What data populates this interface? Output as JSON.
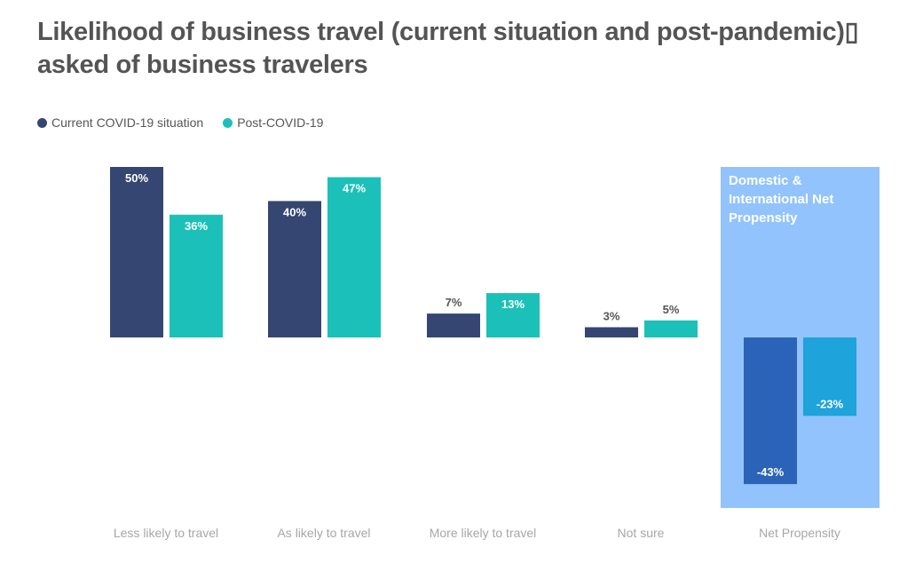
{
  "title": "Likelihood of business travel (current situation and post-pandemic)▯ asked of business travelers",
  "colors": {
    "current": "#364672",
    "post": "#1bc1b8",
    "net_current": "#2b63b8",
    "net_post": "#1ea3da",
    "net_panel": "#92c3fc"
  },
  "chart_data": {
    "type": "bar",
    "title": "Likelihood of business travel (current situation and post-pandemic)▯ asked of business travelers",
    "categories": [
      "Less likely to travel",
      "As likely to travel",
      "More likely to travel",
      "Not sure",
      "Net Propensity"
    ],
    "series": [
      {
        "name": "Current COVID-19 situation",
        "values": [
          50,
          40,
          7,
          3,
          -43
        ],
        "labels": [
          "50%",
          "40%",
          "7%",
          "3%",
          "-43%"
        ]
      },
      {
        "name": "Post-COVID-19",
        "values": [
          36,
          47,
          13,
          5,
          -23
        ],
        "labels": [
          "36%",
          "47%",
          "13%",
          "5%",
          "-23%"
        ]
      }
    ],
    "annotation": "Domestic & International Net Propensity",
    "ylim": [
      -50,
      50
    ],
    "legend_position": "top-left",
    "grid": false
  }
}
